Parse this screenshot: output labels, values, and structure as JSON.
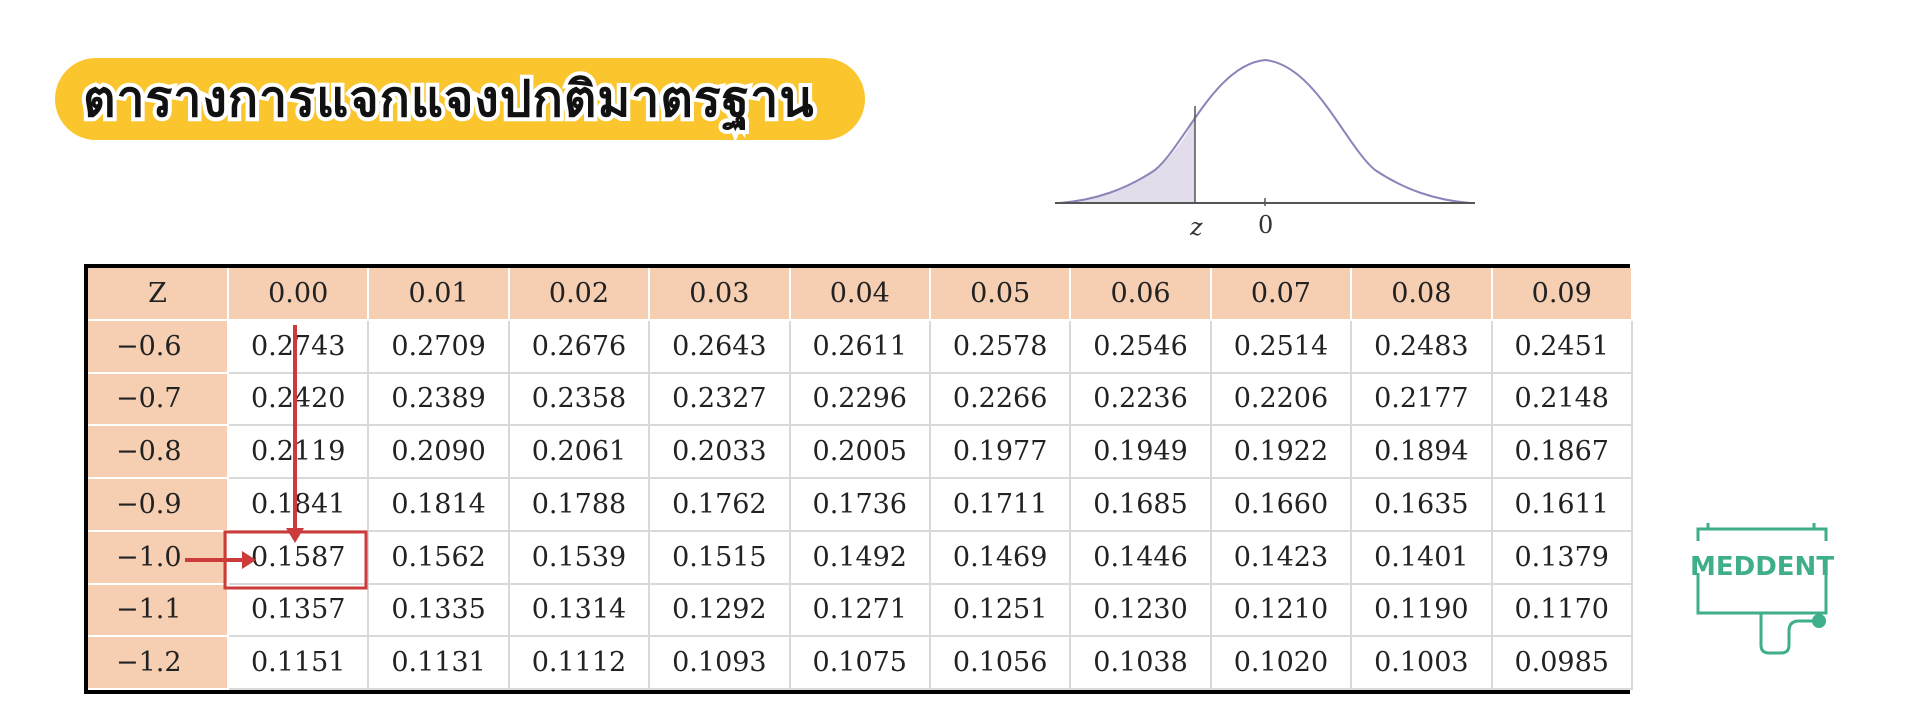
{
  "title": "ตารางการแจกแจงปกติมาตรฐาน",
  "curve": {
    "z_label": "z",
    "zero_label": "0",
    "shade_color": "#e3dcea",
    "line_color": "#8a84b8"
  },
  "table": {
    "corner": "Z",
    "columns": [
      "0.00",
      "0.01",
      "0.02",
      "0.03",
      "0.04",
      "0.05",
      "0.06",
      "0.07",
      "0.08",
      "0.09"
    ],
    "rows": [
      {
        "z": "−0.6",
        "values": [
          "0.2743",
          "0.2709",
          "0.2676",
          "0.2643",
          "0.2611",
          "0.2578",
          "0.2546",
          "0.2514",
          "0.2483",
          "0.2451"
        ]
      },
      {
        "z": "−0.7",
        "values": [
          "0.2420",
          "0.2389",
          "0.2358",
          "0.2327",
          "0.2296",
          "0.2266",
          "0.2236",
          "0.2206",
          "0.2177",
          "0.2148"
        ]
      },
      {
        "z": "−0.8",
        "values": [
          "0.2119",
          "0.2090",
          "0.2061",
          "0.2033",
          "0.2005",
          "0.1977",
          "0.1949",
          "0.1922",
          "0.1894",
          "0.1867"
        ]
      },
      {
        "z": "−0.9",
        "values": [
          "0.1841",
          "0.1814",
          "0.1788",
          "0.1762",
          "0.1736",
          "0.1711",
          "0.1685",
          "0.1660",
          "0.1635",
          "0.1611"
        ]
      },
      {
        "z": "−1.0",
        "values": [
          "0.1587",
          "0.1562",
          "0.1539",
          "0.1515",
          "0.1492",
          "0.1469",
          "0.1446",
          "0.1423",
          "0.1401",
          "0.1379"
        ]
      },
      {
        "z": "−1.1",
        "values": [
          "0.1357",
          "0.1335",
          "0.1314",
          "0.1292",
          "0.1271",
          "0.1251",
          "0.1230",
          "0.1210",
          "0.1190",
          "0.1170"
        ]
      },
      {
        "z": "−1.2",
        "values": [
          "0.1151",
          "0.1131",
          "0.1112",
          "0.1093",
          "0.1075",
          "0.1056",
          "0.1038",
          "0.1020",
          "0.1003",
          "0.0985"
        ]
      }
    ],
    "highlight": {
      "row": 4,
      "col": 0,
      "color": "#cc3b3b"
    }
  },
  "logo": {
    "text": "MEDDENT",
    "color": "#3fae8a"
  }
}
